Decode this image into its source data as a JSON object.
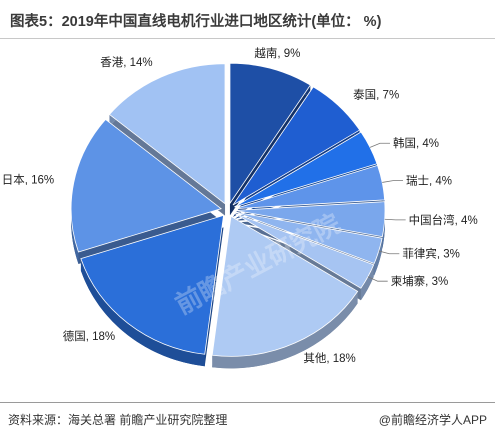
{
  "header": {
    "title": "图表5：2019年中国直线电机行业进口地区统计(单位：  %)"
  },
  "footer": {
    "source": "资料来源：海关总署  前瞻产业研究院整理",
    "credit": "@前瞻经济学人APP"
  },
  "chart_data": {
    "type": "pie",
    "title": "图表5：2019年中国直线电机行业进口地区统计(单位：  %)",
    "unit": "%",
    "slices": [
      {
        "name": "越南",
        "value": 9,
        "label": "越南, 9%",
        "color": "#1e4fa6"
      },
      {
        "name": "泰国",
        "value": 7,
        "label": "泰国, 7%",
        "color": "#1f5ed1"
      },
      {
        "name": "韩国",
        "value": 4,
        "label": "韩国, 4%",
        "color": "#2170e8"
      },
      {
        "name": "瑞士",
        "value": 4,
        "label": "瑞士, 4%",
        "color": "#5e94ea"
      },
      {
        "name": "中国台湾",
        "value": 4,
        "label": "中国台湾, 4%",
        "color": "#7aa7ec"
      },
      {
        "name": "菲律宾",
        "value": 3,
        "label": "菲律宾, 3%",
        "color": "#8fb5ef"
      },
      {
        "name": "柬埔寨",
        "value": 3,
        "label": "柬埔寨, 3%",
        "color": "#a6c4f2"
      },
      {
        "name": "其他",
        "value": 18,
        "label": "其他, 18%",
        "color": "#aecaf3"
      },
      {
        "name": "德国",
        "value": 18,
        "label": "德国, 18%",
        "color": "#2b6fd9"
      },
      {
        "name": "日本",
        "value": 16,
        "label": "日本, 16%",
        "color": "#5d93e6"
      },
      {
        "name": "香港",
        "value": 14,
        "label": "香港, 14%",
        "color": "#a1c2f3"
      }
    ],
    "start_direction": "top",
    "watermark": "前瞻产业研究院"
  }
}
